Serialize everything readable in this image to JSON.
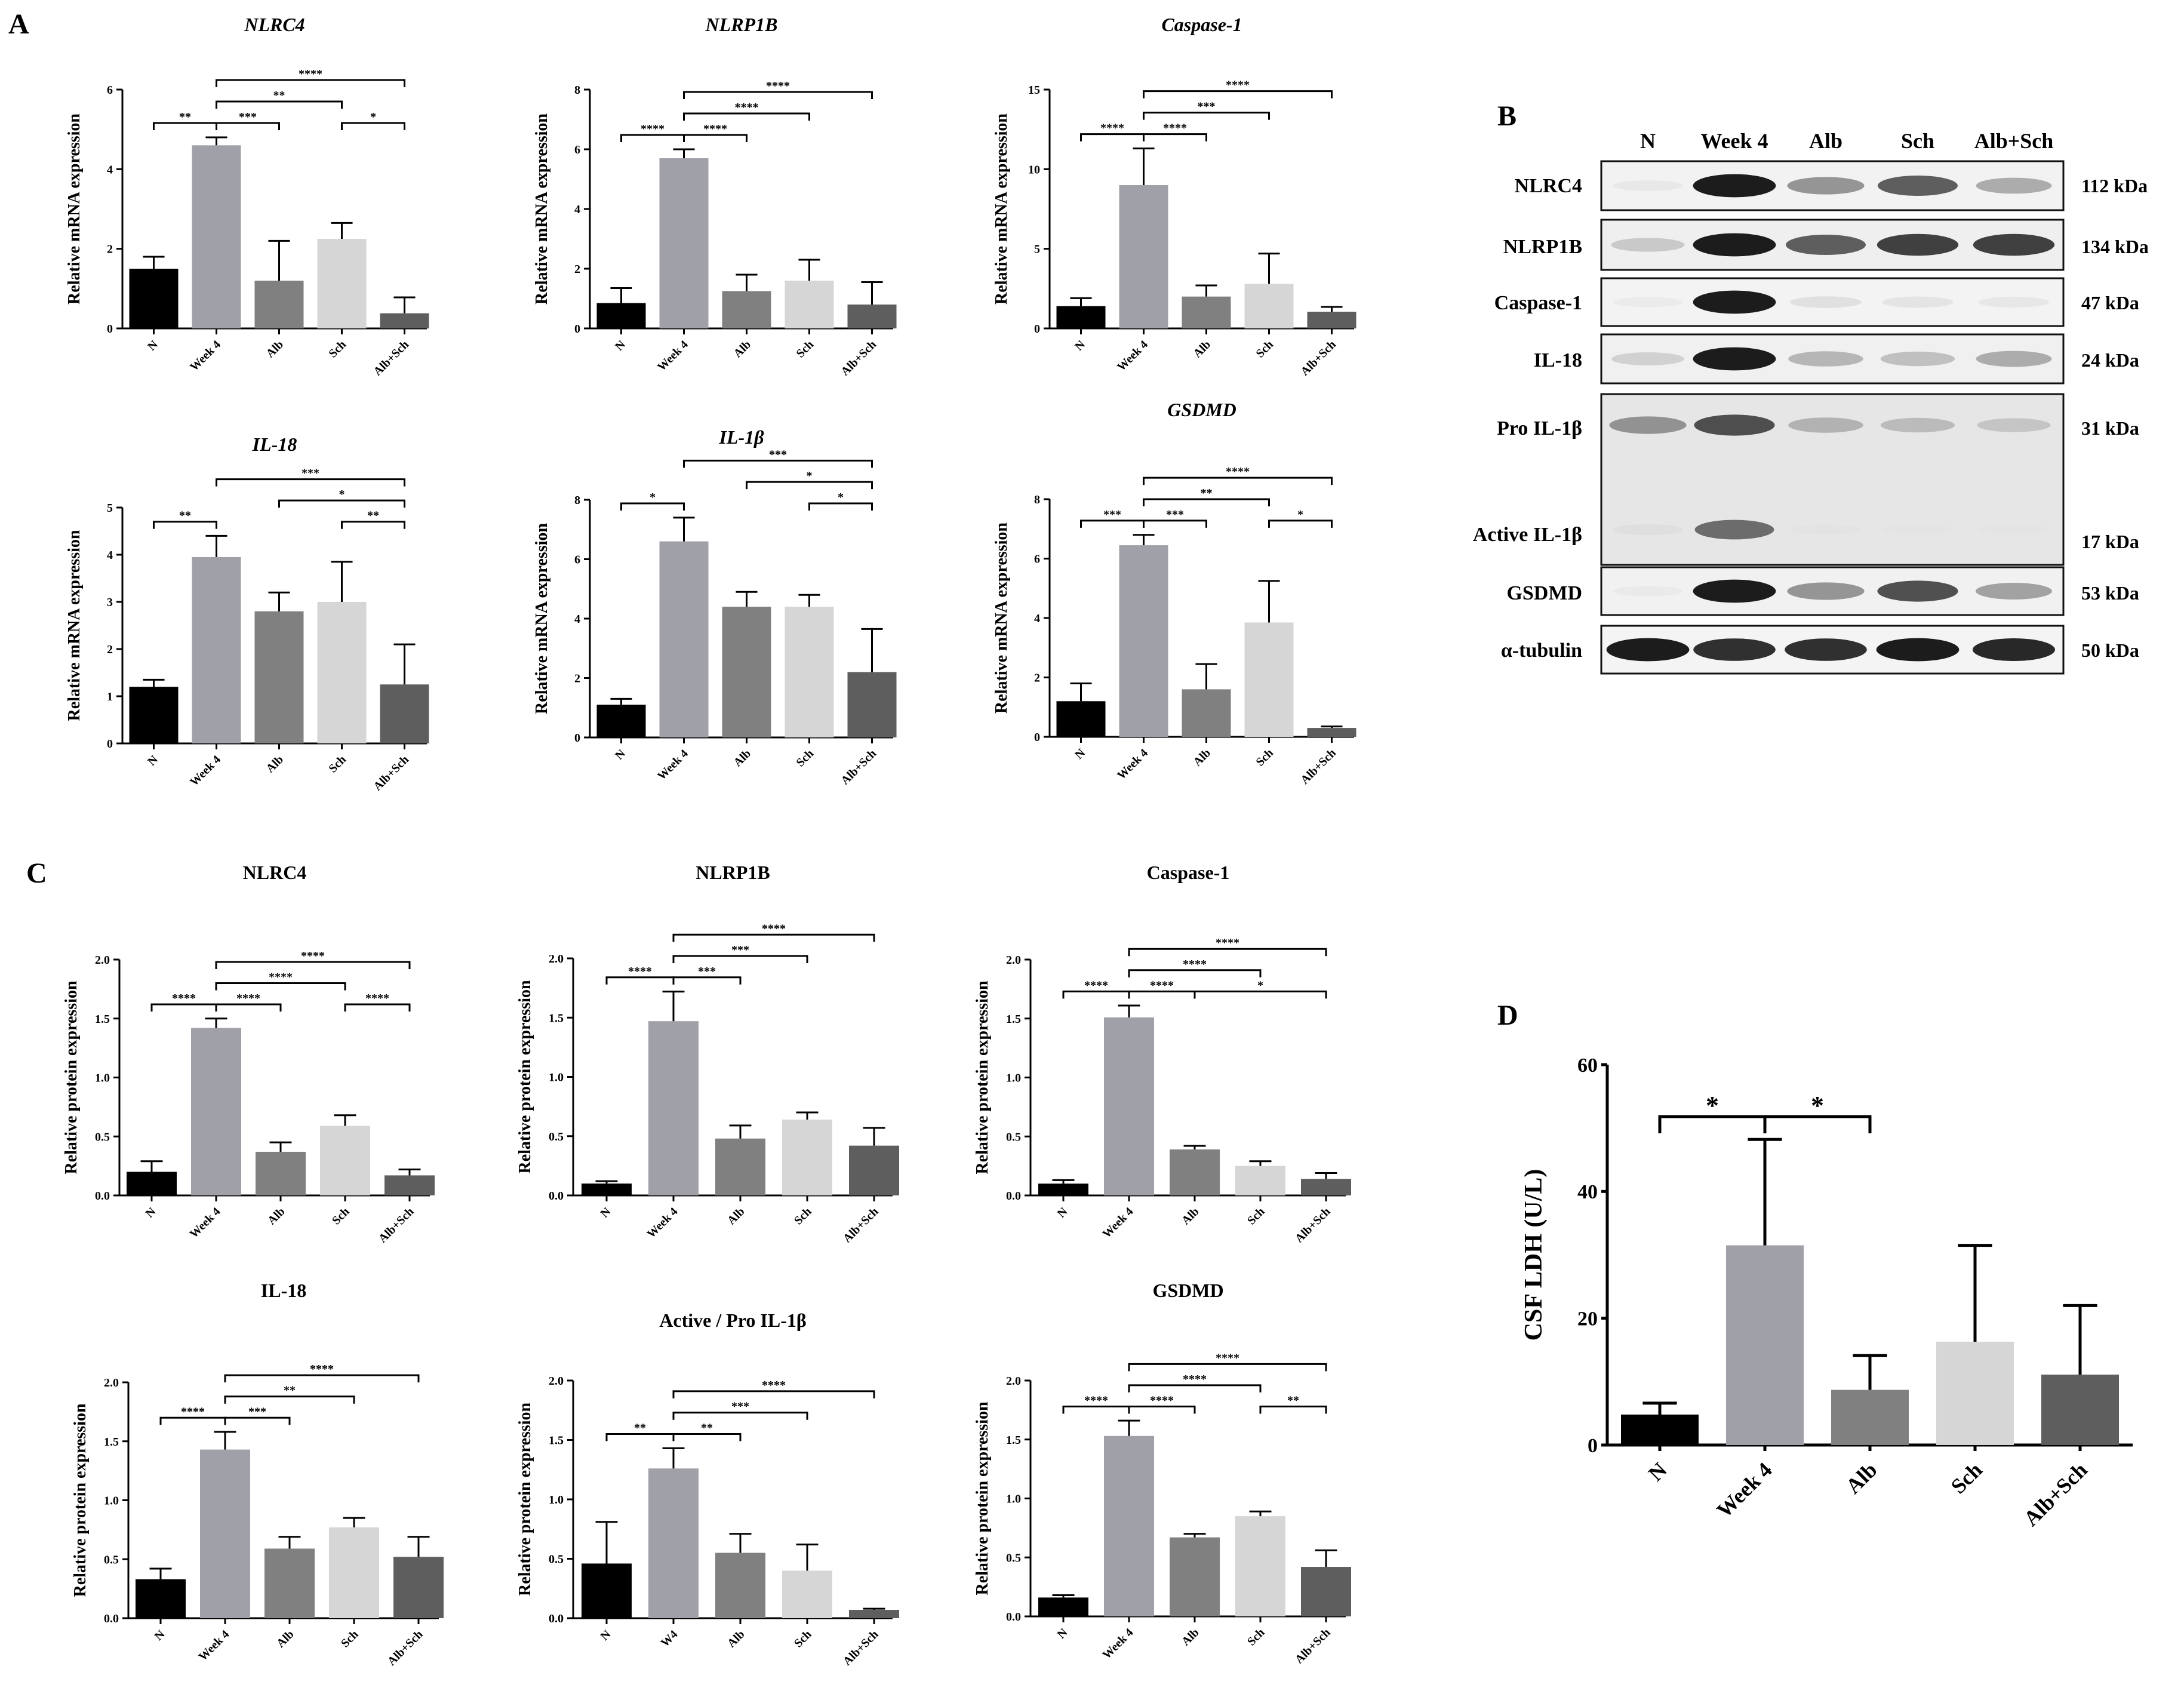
{
  "panels": {
    "A": "A",
    "B": "B",
    "C": "C",
    "D": "D"
  },
  "colors": [
    "#000000",
    "#a0a0a8",
    "#808080",
    "#d6d6d6",
    "#5e5e5e"
  ],
  "chart_data": [
    {
      "id": "A1",
      "panel": "A",
      "type": "bar",
      "title": "NLRC4",
      "italic": true,
      "ylabel": "Relative mRNA expression",
      "ylim": [
        0,
        6
      ],
      "yticks": [
        "0",
        "2",
        "4",
        "6"
      ],
      "categories": [
        "N",
        "Week 4",
        "Alb",
        "Sch",
        "Alb+Sch"
      ],
      "values": [
        1.5,
        4.6,
        1.2,
        2.25,
        0.38
      ],
      "errors": [
        0.3,
        0.2,
        1.0,
        0.4,
        0.4
      ],
      "sig": [
        {
          "from": 0,
          "to": 1,
          "label": "**"
        },
        {
          "from": 1,
          "to": 2,
          "label": "***"
        },
        {
          "from": 1,
          "to": 3,
          "label": "**"
        },
        {
          "from": 1,
          "to": 4,
          "label": "****"
        },
        {
          "from": 3,
          "to": 4,
          "label": "*"
        }
      ]
    },
    {
      "id": "A2",
      "panel": "A",
      "type": "bar",
      "title": "NLRP1B",
      "italic": true,
      "ylabel": "Relative mRNA expression",
      "ylim": [
        0,
        8
      ],
      "yticks": [
        "0",
        "2",
        "4",
        "6",
        "8"
      ],
      "categories": [
        "N",
        "Week 4",
        "Alb",
        "Sch",
        "Alb+Sch"
      ],
      "values": [
        0.85,
        5.7,
        1.25,
        1.6,
        0.8
      ],
      "errors": [
        0.5,
        0.3,
        0.55,
        0.7,
        0.75
      ],
      "sig": [
        {
          "from": 0,
          "to": 1,
          "label": "****"
        },
        {
          "from": 1,
          "to": 2,
          "label": "****"
        },
        {
          "from": 1,
          "to": 3,
          "label": "****"
        },
        {
          "from": 1,
          "to": 4,
          "label": "****"
        }
      ]
    },
    {
      "id": "A3",
      "panel": "A",
      "type": "bar",
      "title": "Caspase-1",
      "italic": true,
      "ylabel": "Relative mRNA expression",
      "ylim": [
        0,
        15
      ],
      "yticks": [
        "0",
        "5",
        "10",
        "15"
      ],
      "categories": [
        "N",
        "Week 4",
        "Alb",
        "Sch",
        "Alb+Sch"
      ],
      "values": [
        1.4,
        9.0,
        2.0,
        2.8,
        1.05
      ],
      "errors": [
        0.5,
        2.3,
        0.7,
        1.9,
        0.3
      ],
      "sig": [
        {
          "from": 0,
          "to": 1,
          "label": "****"
        },
        {
          "from": 1,
          "to": 2,
          "label": "****"
        },
        {
          "from": 1,
          "to": 3,
          "label": "***"
        },
        {
          "from": 1,
          "to": 4,
          "label": "****"
        }
      ]
    },
    {
      "id": "A4",
      "panel": "A",
      "type": "bar",
      "title": "IL-18",
      "italic": true,
      "ylabel": "Relative mRNA expression",
      "ylim": [
        0,
        5
      ],
      "yticks": [
        "0",
        "1",
        "2",
        "3",
        "4",
        "5"
      ],
      "categories": [
        "N",
        "Week 4",
        "Alb",
        "Sch",
        "Alb+Sch"
      ],
      "values": [
        1.2,
        3.95,
        2.8,
        3.0,
        1.25
      ],
      "errors": [
        0.15,
        0.45,
        0.4,
        0.85,
        0.85
      ],
      "sig": [
        {
          "from": 0,
          "to": 1,
          "label": "**"
        },
        {
          "from": 1,
          "to": 4,
          "label": "***"
        },
        {
          "from": 2,
          "to": 4,
          "label": "*"
        },
        {
          "from": 3,
          "to": 4,
          "label": "**"
        }
      ]
    },
    {
      "id": "A5",
      "panel": "A",
      "type": "bar",
      "title": "IL-1β",
      "italic": true,
      "ylabel": "Relative mRNA expression",
      "ylim": [
        0,
        8
      ],
      "yticks": [
        "0",
        "2",
        "4",
        "6",
        "8"
      ],
      "categories": [
        "N",
        "Week 4",
        "Alb",
        "Sch",
        "Alb+Sch"
      ],
      "values": [
        1.1,
        6.6,
        4.4,
        4.4,
        2.2
      ],
      "errors": [
        0.2,
        0.8,
        0.5,
        0.4,
        1.45
      ],
      "sig": [
        {
          "from": 0,
          "to": 1,
          "label": "*"
        },
        {
          "from": 1,
          "to": 4,
          "label": "***"
        },
        {
          "from": 2,
          "to": 4,
          "label": "*"
        },
        {
          "from": 3,
          "to": 4,
          "label": "*"
        }
      ]
    },
    {
      "id": "A6",
      "panel": "A",
      "type": "bar",
      "title": "GSDMD",
      "italic": true,
      "ylabel": "Relative mRNA expression",
      "ylim": [
        0,
        8
      ],
      "yticks": [
        "0",
        "2",
        "4",
        "6",
        "8"
      ],
      "categories": [
        "N",
        "Week 4",
        "Alb",
        "Sch",
        "Alb+Sch"
      ],
      "values": [
        1.2,
        6.45,
        1.6,
        3.85,
        0.3
      ],
      "errors": [
        0.6,
        0.35,
        0.85,
        1.4,
        0.05
      ],
      "sig": [
        {
          "from": 0,
          "to": 1,
          "label": "***"
        },
        {
          "from": 1,
          "to": 2,
          "label": "***"
        },
        {
          "from": 1,
          "to": 3,
          "label": "**"
        },
        {
          "from": 1,
          "to": 4,
          "label": "****"
        },
        {
          "from": 3,
          "to": 4,
          "label": "*"
        }
      ]
    },
    {
      "id": "C1",
      "panel": "C",
      "type": "bar",
      "title": "NLRC4",
      "italic": false,
      "ylabel": "Relative protein expression",
      "ylim": [
        0,
        2
      ],
      "yticks": [
        "0.0",
        "0.5",
        "1.0",
        "1.5",
        "2.0"
      ],
      "categories": [
        "N",
        "Week 4",
        "Alb",
        "Sch",
        "Alb+Sch"
      ],
      "values": [
        0.2,
        1.42,
        0.37,
        0.59,
        0.17
      ],
      "errors": [
        0.09,
        0.08,
        0.08,
        0.09,
        0.05
      ],
      "sig": [
        {
          "from": 0,
          "to": 1,
          "label": "****"
        },
        {
          "from": 1,
          "to": 2,
          "label": "****"
        },
        {
          "from": 1,
          "to": 3,
          "label": "****"
        },
        {
          "from": 1,
          "to": 4,
          "label": "****"
        },
        {
          "from": 3,
          "to": 4,
          "label": "****"
        }
      ]
    },
    {
      "id": "C2",
      "panel": "C",
      "type": "bar",
      "title": "NLRP1B",
      "italic": false,
      "ylabel": "Relative protein expression",
      "ylim": [
        0,
        2
      ],
      "yticks": [
        "0.0",
        "0.5",
        "1.0",
        "1.5",
        "2.0"
      ],
      "categories": [
        "N",
        "Week 4",
        "Alb",
        "Sch",
        "Alb+Sch"
      ],
      "values": [
        0.1,
        1.47,
        0.48,
        0.64,
        0.42
      ],
      "errors": [
        0.02,
        0.25,
        0.11,
        0.06,
        0.15
      ],
      "sig": [
        {
          "from": 0,
          "to": 1,
          "label": "****"
        },
        {
          "from": 1,
          "to": 2,
          "label": "***"
        },
        {
          "from": 1,
          "to": 3,
          "label": "***"
        },
        {
          "from": 1,
          "to": 4,
          "label": "****"
        }
      ]
    },
    {
      "id": "C3",
      "panel": "C",
      "type": "bar",
      "title": "Caspase-1",
      "italic": false,
      "ylabel": "Relative protein expression",
      "ylim": [
        0,
        2
      ],
      "yticks": [
        "0.0",
        "0.5",
        "1.0",
        "1.5",
        "2.0"
      ],
      "categories": [
        "N",
        "Week 4",
        "Alb",
        "Sch",
        "Alb+Sch"
      ],
      "values": [
        0.1,
        1.51,
        0.39,
        0.25,
        0.14
      ],
      "errors": [
        0.03,
        0.1,
        0.03,
        0.04,
        0.05
      ],
      "sig": [
        {
          "from": 0,
          "to": 1,
          "label": "****"
        },
        {
          "from": 1,
          "to": 2,
          "label": "****"
        },
        {
          "from": 1,
          "to": 3,
          "label": "****"
        },
        {
          "from": 1,
          "to": 4,
          "label": "****"
        },
        {
          "from": 2,
          "to": 4,
          "label": "*"
        }
      ]
    },
    {
      "id": "C4",
      "panel": "C",
      "type": "bar",
      "title": "IL-18",
      "italic": false,
      "ylabel": "Relative protein expression",
      "ylim": [
        0,
        2
      ],
      "yticks": [
        "0.0",
        "0.5",
        "1.0",
        "1.5",
        "2.0"
      ],
      "categories": [
        "N",
        "Week 4",
        "Alb",
        "Sch",
        "Alb+Sch"
      ],
      "values": [
        0.33,
        1.43,
        0.59,
        0.77,
        0.52
      ],
      "errors": [
        0.09,
        0.15,
        0.1,
        0.08,
        0.17
      ],
      "sig": [
        {
          "from": 0,
          "to": 1,
          "label": "****"
        },
        {
          "from": 1,
          "to": 2,
          "label": "***"
        },
        {
          "from": 1,
          "to": 3,
          "label": "**"
        },
        {
          "from": 1,
          "to": 4,
          "label": "****"
        }
      ]
    },
    {
      "id": "C5",
      "panel": "C",
      "type": "bar",
      "title": "Active / Pro IL-1β",
      "italic": false,
      "ylabel": "Relative protein expression",
      "ylim": [
        0,
        2
      ],
      "yticks": [
        "0.0",
        "0.5",
        "1.0",
        "1.5",
        "2.0"
      ],
      "categories": [
        "N",
        "W4",
        "Alb",
        "Sch",
        "Alb+Sch"
      ],
      "values": [
        0.46,
        1.26,
        0.55,
        0.4,
        0.07
      ],
      "errors": [
        0.35,
        0.17,
        0.16,
        0.22,
        0.01
      ],
      "sig": [
        {
          "from": 0,
          "to": 1,
          "label": "**"
        },
        {
          "from": 1,
          "to": 2,
          "label": "**"
        },
        {
          "from": 1,
          "to": 3,
          "label": "***"
        },
        {
          "from": 1,
          "to": 4,
          "label": "****"
        }
      ]
    },
    {
      "id": "C6",
      "panel": "C",
      "type": "bar",
      "title": "GSDMD",
      "italic": false,
      "ylabel": "Relative protein expression",
      "ylim": [
        0,
        2
      ],
      "yticks": [
        "0.0",
        "0.5",
        "1.0",
        "1.5",
        "2.0"
      ],
      "categories": [
        "N",
        "Week 4",
        "Alb",
        "Sch",
        "Alb+Sch"
      ],
      "values": [
        0.16,
        1.53,
        0.67,
        0.85,
        0.42
      ],
      "errors": [
        0.02,
        0.13,
        0.03,
        0.04,
        0.14
      ],
      "sig": [
        {
          "from": 0,
          "to": 1,
          "label": "****"
        },
        {
          "from": 1,
          "to": 2,
          "label": "****"
        },
        {
          "from": 1,
          "to": 3,
          "label": "****"
        },
        {
          "from": 1,
          "to": 4,
          "label": "****"
        },
        {
          "from": 3,
          "to": 4,
          "label": "**"
        }
      ]
    },
    {
      "id": "D",
      "panel": "D",
      "type": "bar",
      "title": "",
      "italic": false,
      "ylabel": "CSF LDH (U/L)",
      "ylim": [
        0,
        60
      ],
      "yticks": [
        "0",
        "20",
        "40",
        "60"
      ],
      "categories": [
        "N",
        "Week 4",
        "Alb",
        "Sch",
        "Alb+Sch"
      ],
      "values": [
        4.8,
        31.5,
        8.7,
        16.3,
        11.1
      ],
      "errors": [
        1.8,
        16.7,
        5.4,
        15.2,
        10.9
      ],
      "sig": [
        {
          "from": 0,
          "to": 1,
          "label": "*"
        },
        {
          "from": 1,
          "to": 2,
          "label": "*"
        }
      ]
    }
  ],
  "western_blot": {
    "columns": [
      "N",
      "Week 4",
      "Alb",
      "Sch",
      "Alb+Sch"
    ],
    "rows": [
      {
        "label": "NLRC4",
        "kda": "112 kDa",
        "intensity": [
          0.08,
          0.95,
          0.55,
          0.75,
          0.45
        ]
      },
      {
        "label": "NLRP1B",
        "kda": "134 kDa",
        "intensity": [
          0.3,
          0.95,
          0.75,
          0.85,
          0.85
        ]
      },
      {
        "label": "Caspase-1",
        "kda": "47 kDa",
        "intensity": [
          0.05,
          0.95,
          0.15,
          0.12,
          0.1
        ]
      },
      {
        "label": "IL-18",
        "kda": "24 kDa",
        "intensity": [
          0.25,
          0.95,
          0.4,
          0.35,
          0.45
        ]
      },
      {
        "label": "Pro IL-1β",
        "kda": "31 kDa",
        "intensity": [
          0.55,
          0.8,
          0.4,
          0.35,
          0.3
        ]
      },
      {
        "label": "Active IL-1β",
        "kda": "17 kDa",
        "intensity": [
          0.1,
          0.7,
          0.05,
          0.04,
          0.04
        ]
      },
      {
        "label": "GSDMD",
        "kda": "53 kDa",
        "intensity": [
          0.05,
          0.95,
          0.55,
          0.8,
          0.5
        ]
      },
      {
        "label": "α-tubulin",
        "kda": "50 kDa",
        "intensity": [
          0.95,
          0.9,
          0.9,
          0.95,
          0.92
        ]
      }
    ]
  }
}
